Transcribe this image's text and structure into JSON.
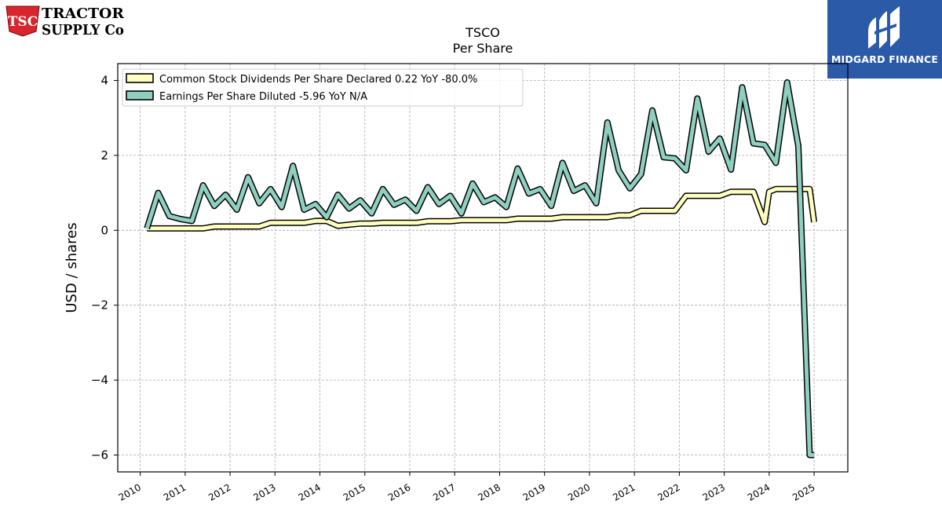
{
  "logos": {
    "left": {
      "line1": "TRACTOR",
      "line2": "SUPPLY Co",
      "badge": "TSC",
      "icon": "tractor-supply-logo",
      "color": "#d7262e"
    },
    "right": {
      "text": "MIDGARD FINANCE",
      "icon": "midgard-finance-logo",
      "color": "#2a5aa8"
    }
  },
  "chart_data": {
    "type": "line",
    "title": "TSCO",
    "subtitle": "Per  Share",
    "ylabel": "USD / shares",
    "xlabel": "",
    "ylim": [
      -6.45,
      4.45
    ],
    "yticks": [
      4,
      2,
      0,
      -2,
      -4,
      -6
    ],
    "ytick_labels": [
      "4",
      "2",
      "0",
      "−2",
      "−4",
      "−6"
    ],
    "xlim": [
      2009.5,
      2025.75
    ],
    "xticks": [
      2010,
      2011,
      2012,
      2013,
      2014,
      2015,
      2016,
      2017,
      2018,
      2019,
      2020,
      2021,
      2022,
      2023,
      2024,
      2025
    ],
    "grid": true,
    "legend_position": "top-left",
    "series": [
      {
        "name": "Common Stock Dividends Per Share Declared  0.22 YoY -80.0%",
        "color": "#ffffc0",
        "x": [
          2010.15,
          2010.4,
          2010.65,
          2010.9,
          2011.15,
          2011.4,
          2011.65,
          2011.9,
          2012.15,
          2012.4,
          2012.65,
          2012.9,
          2013.15,
          2013.4,
          2013.65,
          2013.9,
          2014.15,
          2014.4,
          2014.65,
          2014.9,
          2015.15,
          2015.4,
          2015.65,
          2015.9,
          2016.15,
          2016.4,
          2016.65,
          2016.9,
          2017.15,
          2017.4,
          2017.65,
          2017.9,
          2018.15,
          2018.4,
          2018.65,
          2018.9,
          2019.15,
          2019.4,
          2019.65,
          2019.9,
          2020.15,
          2020.4,
          2020.65,
          2020.9,
          2021.15,
          2021.4,
          2021.65,
          2021.9,
          2022.15,
          2022.4,
          2022.65,
          2022.9,
          2023.15,
          2023.4,
          2023.65,
          2023.9,
          2024.0,
          2024.15,
          2024.4,
          2024.65,
          2024.9,
          2025.0
        ],
        "values": [
          0.05,
          0.05,
          0.05,
          0.05,
          0.05,
          0.05,
          0.1,
          0.1,
          0.1,
          0.1,
          0.1,
          0.2,
          0.2,
          0.2,
          0.2,
          0.25,
          0.25,
          0.12,
          0.15,
          0.18,
          0.18,
          0.2,
          0.2,
          0.2,
          0.2,
          0.24,
          0.24,
          0.24,
          0.27,
          0.27,
          0.27,
          0.27,
          0.27,
          0.31,
          0.31,
          0.31,
          0.31,
          0.35,
          0.35,
          0.35,
          0.35,
          0.35,
          0.4,
          0.4,
          0.52,
          0.52,
          0.52,
          0.52,
          0.92,
          0.92,
          0.92,
          0.92,
          1.03,
          1.03,
          1.03,
          0.22,
          1.03,
          1.1,
          1.1,
          1.1,
          1.1,
          0.22
        ]
      },
      {
        "name": "Earnings Per Share Diluted  -5.96 YoY N/A",
        "color": "#8ecfc0",
        "x": [
          2010.15,
          2010.4,
          2010.65,
          2010.9,
          2011.15,
          2011.4,
          2011.65,
          2011.9,
          2012.15,
          2012.4,
          2012.65,
          2012.9,
          2013.15,
          2013.4,
          2013.65,
          2013.9,
          2014.15,
          2014.4,
          2014.65,
          2014.9,
          2015.15,
          2015.4,
          2015.65,
          2015.9,
          2016.15,
          2016.4,
          2016.65,
          2016.9,
          2017.15,
          2017.4,
          2017.65,
          2017.9,
          2018.15,
          2018.4,
          2018.65,
          2018.9,
          2019.15,
          2019.4,
          2019.65,
          2019.9,
          2020.15,
          2020.4,
          2020.65,
          2020.9,
          2021.15,
          2021.4,
          2021.65,
          2021.9,
          2022.15,
          2022.4,
          2022.65,
          2022.9,
          2023.15,
          2023.4,
          2023.65,
          2023.9,
          2024.15,
          2024.4,
          2024.65,
          2024.9,
          2025.0
        ],
        "values": [
          0.05,
          1.0,
          0.38,
          0.3,
          0.25,
          1.2,
          0.65,
          0.95,
          0.55,
          1.42,
          0.72,
          1.1,
          0.62,
          1.72,
          0.55,
          0.7,
          0.35,
          0.95,
          0.58,
          0.8,
          0.45,
          1.1,
          0.68,
          0.82,
          0.52,
          1.15,
          0.7,
          0.92,
          0.45,
          1.25,
          0.75,
          0.88,
          0.62,
          1.65,
          0.98,
          1.1,
          0.65,
          1.8,
          1.05,
          1.2,
          0.72,
          2.88,
          1.6,
          1.12,
          1.5,
          3.2,
          1.95,
          1.92,
          1.6,
          3.52,
          2.1,
          2.45,
          1.62,
          3.82,
          2.32,
          2.28,
          1.8,
          3.95,
          2.25,
          -6.0,
          -6.0
        ]
      }
    ]
  }
}
